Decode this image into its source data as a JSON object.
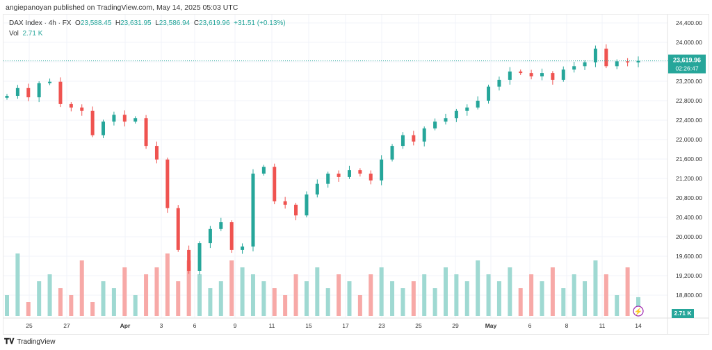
{
  "header": {
    "published": "angiepanoyan published on TradingView.com, May 14, 2025 05:03 UTC"
  },
  "legend": {
    "symbol": "DAX Index · 4h · FX",
    "o_label": "O",
    "o": "23,588.45",
    "h_label": "H",
    "h": "23,631.95",
    "l_label": "L",
    "l": "23,586.94",
    "c_label": "C",
    "c": "23,619.96",
    "change": "+31.51 (+0.13%)",
    "vol_label": "Vol",
    "vol": "2.71 K"
  },
  "price_tag": {
    "price": "23,619.96",
    "countdown": "02:26:47"
  },
  "vol_tag": "2.71 K",
  "footer": {
    "brand": "TradingView"
  },
  "colors": {
    "up": "#26a69a",
    "down": "#ef5350",
    "vol_up": "#9fd9d2",
    "vol_down": "#f7a9a7"
  },
  "chart_data": {
    "type": "candlestick",
    "title": "DAX Index · 4h · FX",
    "y_ticks": [
      "24,400.00",
      "24,000.00",
      "23,600.00",
      "23,200.00",
      "22,800.00",
      "22,400.00",
      "22,000.00",
      "21,600.00",
      "21,200.00",
      "20,800.00",
      "20,400.00",
      "20,000.00",
      "19,600.00",
      "19,200.00",
      "18,800.00"
    ],
    "y_tick_values": [
      24400,
      24000,
      23600,
      23200,
      22800,
      22400,
      22000,
      21600,
      21200,
      20800,
      20400,
      20000,
      19600,
      19200,
      18800
    ],
    "ylim": [
      18400,
      24600
    ],
    "x_ticks": [
      "25",
      "27",
      "Apr",
      "3",
      "6",
      "9",
      "11",
      "15",
      "17",
      "23",
      "25",
      "29",
      "May",
      "6",
      "8",
      "11",
      "14"
    ],
    "closes": [
      22900,
      23060,
      22870,
      23160,
      23190,
      22730,
      22660,
      22590,
      22090,
      22370,
      22510,
      22370,
      22440,
      21870,
      21590,
      20590,
      19730,
      19300,
      19870,
      20160,
      20300,
      19730,
      19800,
      21300,
      21440,
      20730,
      20660,
      20440,
      20870,
      21090,
      21300,
      21230,
      21370,
      21300,
      21160,
      21590,
      21870,
      22090,
      21960,
      22230,
      22370,
      22440,
      22590,
      22660,
      22800,
      23090,
      23230,
      23400,
      23370,
      23300,
      23370,
      23230,
      23440,
      23510,
      23590,
      23870,
      23510,
      23610,
      23588,
      23620
    ],
    "volumes_k": [
      3,
      9,
      2,
      5,
      6,
      4,
      3,
      8,
      2,
      5,
      4,
      7,
      3,
      6,
      7,
      9,
      5,
      8,
      6,
      4,
      5,
      8,
      7,
      6,
      5,
      4,
      3,
      6,
      5,
      7,
      4,
      6,
      5,
      3,
      6,
      7,
      5,
      4,
      5,
      6,
      4,
      7,
      6,
      5,
      8,
      6,
      5,
      7,
      4,
      6,
      5,
      7,
      4,
      6,
      5,
      8,
      6,
      3,
      7,
      2.71
    ]
  }
}
